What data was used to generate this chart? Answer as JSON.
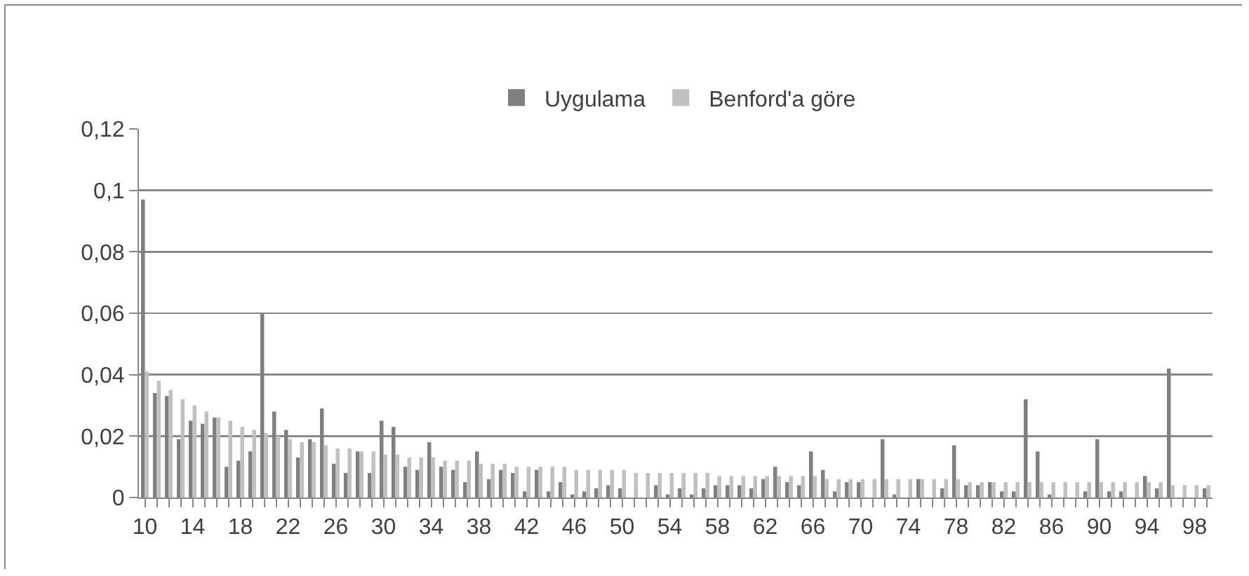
{
  "chart_data": {
    "type": "bar",
    "categories": [
      "10",
      null,
      null,
      null,
      "14",
      null,
      null,
      null,
      "18",
      null,
      null,
      null,
      "22",
      null,
      null,
      null,
      "26",
      null,
      null,
      null,
      "30",
      null,
      null,
      null,
      "34",
      null,
      null,
      null,
      "38",
      null,
      null,
      null,
      "42",
      null,
      null,
      null,
      "46",
      null,
      null,
      null,
      "50",
      null,
      null,
      null,
      "54",
      null,
      null,
      null,
      "58",
      null,
      null,
      null,
      "62",
      null,
      null,
      null,
      "66",
      null,
      null,
      null,
      "70",
      null,
      null,
      null,
      "74",
      null,
      null,
      null,
      "78",
      null,
      null,
      null,
      "82",
      null,
      null,
      null,
      "86",
      null,
      null,
      null,
      "90",
      null,
      null,
      null,
      "94",
      null,
      null,
      null,
      "98",
      null
    ],
    "series": [
      {
        "name": "Uygulama",
        "color": "#7f7f7f",
        "values": [
          0.097,
          0.034,
          0.033,
          0.019,
          0.025,
          0.024,
          0.026,
          0.01,
          0.012,
          0.015,
          0.06,
          0.028,
          0.022,
          0.013,
          0.019,
          0.029,
          0.011,
          0.008,
          0.015,
          0.008,
          0.025,
          0.023,
          0.01,
          0.009,
          0.018,
          0.01,
          0.009,
          0.005,
          0.015,
          0.006,
          0.009,
          0.008,
          0.002,
          0.009,
          0.002,
          0.005,
          0.001,
          0.002,
          0.003,
          0.004,
          0.003,
          0,
          0,
          0.004,
          0.001,
          0.003,
          0.001,
          0.003,
          0.004,
          0.004,
          0.004,
          0.003,
          0.006,
          0.01,
          0.005,
          0.004,
          0.015,
          0.009,
          0.002,
          0.005,
          0.005,
          0,
          0.019,
          0.001,
          0,
          0.006,
          0,
          0.003,
          0.017,
          0.004,
          0.004,
          0.005,
          0.002,
          0.002,
          0.032,
          0.015,
          0.001,
          0,
          0,
          0.002,
          0.019,
          0.002,
          0.002,
          0,
          0.007,
          0.003,
          0.042,
          0,
          0,
          0.003
        ]
      },
      {
        "name": "Benford'a göre",
        "color": "#c0c0c0",
        "values": [
          0.041,
          0.038,
          0.035,
          0.032,
          0.03,
          0.028,
          0.026,
          0.025,
          0.023,
          0.022,
          0.021,
          0.02,
          0.019,
          0.018,
          0.018,
          0.017,
          0.016,
          0.016,
          0.015,
          0.015,
          0.014,
          0.014,
          0.013,
          0.013,
          0.013,
          0.012,
          0.012,
          0.012,
          0.011,
          0.011,
          0.011,
          0.01,
          0.01,
          0.01,
          0.01,
          0.01,
          0.009,
          0.009,
          0.009,
          0.009,
          0.009,
          0.008,
          0.008,
          0.008,
          0.008,
          0.008,
          0.008,
          0.008,
          0.007,
          0.007,
          0.007,
          0.007,
          0.007,
          0.007,
          0.007,
          0.007,
          0.007,
          0.006,
          0.006,
          0.006,
          0.006,
          0.006,
          0.006,
          0.006,
          0.006,
          0.006,
          0.006,
          0.006,
          0.006,
          0.005,
          0.005,
          0.005,
          0.005,
          0.005,
          0.005,
          0.005,
          0.005,
          0.005,
          0.005,
          0.005,
          0.005,
          0.005,
          0.005,
          0.005,
          0.005,
          0.005,
          0.004,
          0.004,
          0.004,
          0.004
        ]
      }
    ],
    "ylim": [
      0,
      0.12
    ],
    "yticks": [
      0,
      {
        "value": 0.02,
        "label": "0,02"
      },
      {
        "value": 0.04,
        "label": "0,04"
      },
      {
        "value": 0.06,
        "label": "0,06"
      },
      {
        "value": 0.08,
        "label": "0,08"
      },
      {
        "value": 0.1,
        "label": "0,1"
      },
      {
        "value": 0.12,
        "label": "0,12"
      }
    ],
    "grid": "y",
    "legend": "top"
  }
}
